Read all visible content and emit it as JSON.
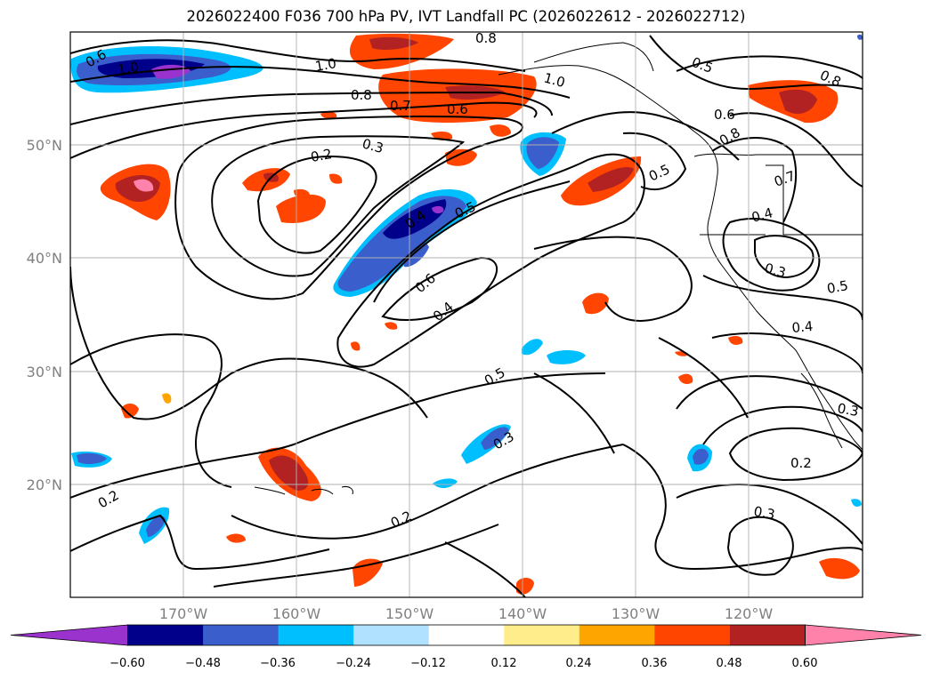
{
  "title": "2026022400 F036 700 hPa PV, IVT Landfall PC (2026022612 - 2026022712)",
  "map": {
    "projection": "lat-lon",
    "lon_range": [
      -180,
      -110
    ],
    "lat_range": [
      10,
      60
    ],
    "gridlines": true,
    "lat_tick_labels": [
      "50°N",
      "40°N",
      "30°N",
      "20°N"
    ],
    "lon_tick_labels": [
      "170°W",
      "160°W",
      "150°W",
      "140°W",
      "130°W",
      "120°W"
    ],
    "contour_labels": [
      "0.8",
      "0.6",
      "1.0",
      "1.0",
      "0.8",
      "0.7",
      "0.6",
      "1.0",
      "0.5",
      "0.8",
      "0.6",
      "0.8",
      "0.3",
      "0.2",
      "0.4",
      "0.5",
      "0.5",
      "0.7",
      "0.4",
      "0.3",
      "0.6",
      "0.4",
      "0.5",
      "0.4",
      "0.3",
      "0.2",
      "0.5",
      "0.3",
      "0.2",
      "0.2",
      "0.3"
    ]
  },
  "colorbar": {
    "extend": "both",
    "ticks": [
      "−0.60",
      "−0.48",
      "−0.36",
      "−0.24",
      "−0.12",
      "0.12",
      "0.24",
      "0.36",
      "0.48",
      "0.60"
    ],
    "colors": [
      "#9a32cd",
      "#00008b",
      "#3a5fcd",
      "#00bfff",
      "#b0e2ff",
      "#ffffff",
      "#ffec8b",
      "#ffa500",
      "#ff4500",
      "#b22222",
      "#ff82ab"
    ]
  }
}
